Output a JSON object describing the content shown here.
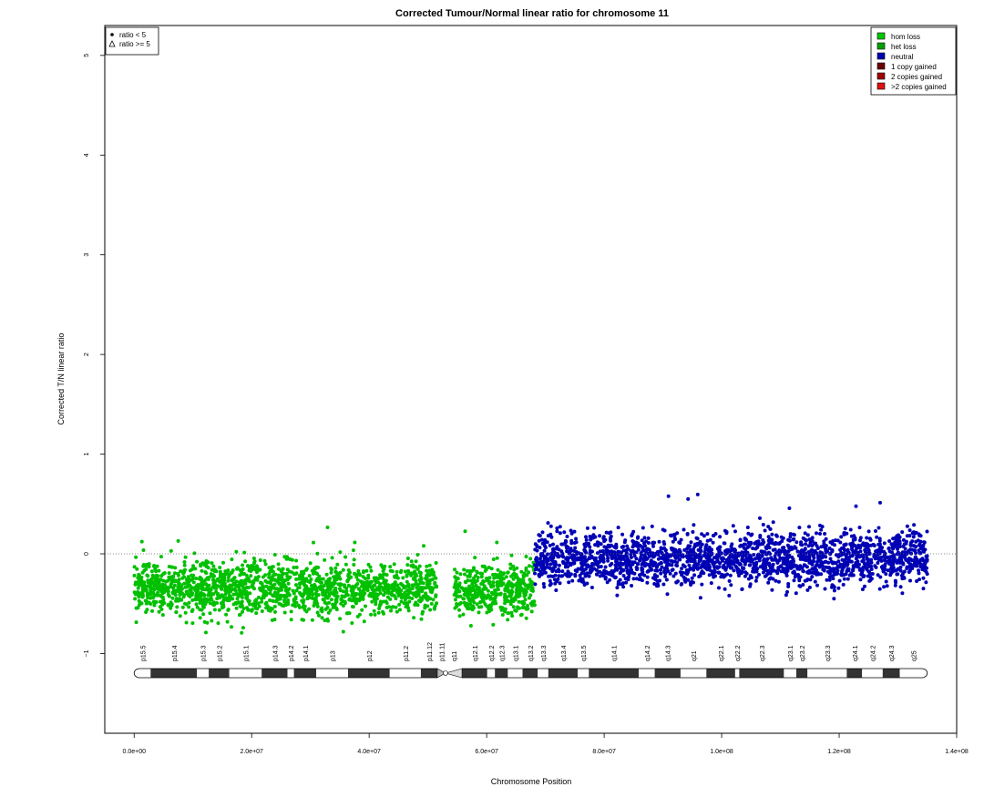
{
  "chart_data": {
    "type": "scatter",
    "title": "Corrected Tumour/Normal linear ratio for chromosome  11",
    "xlabel": "Chromosome Position",
    "ylabel": "Corrected T/N linear ratio",
    "xlim": [
      -5000000,
      140000000
    ],
    "ylim": [
      -1.8,
      5.3
    ],
    "x_ticks": [
      0,
      20000000,
      40000000,
      60000000,
      80000000,
      100000000,
      120000000,
      140000000
    ],
    "x_tick_labels": [
      "0.0e+00",
      "2.0e+07",
      "4.0e+07",
      "6.0e+07",
      "8.0e+07",
      "1.0e+08",
      "1.2e+08",
      "1.4e+08"
    ],
    "y_ticks": [
      -1,
      0,
      1,
      2,
      3,
      4,
      5
    ],
    "y_tick_labels": [
      "−1",
      "0",
      "1",
      "2",
      "3",
      "4",
      "5"
    ],
    "reference_line": 0,
    "shape_legend": {
      "placement": "top-left",
      "entries": [
        {
          "label": "ratio < 5",
          "symbol": "dot"
        },
        {
          "label": "ratio >= 5",
          "symbol": "triangle"
        }
      ]
    },
    "color_legend": {
      "placement": "top-right",
      "entries": [
        {
          "label": "hom loss",
          "color": "#00c800"
        },
        {
          "label": "het loss",
          "color": "#00a000"
        },
        {
          "label": "neutral",
          "color": "#0000b0"
        },
        {
          "label": "1 copy gained",
          "color": "#6e0000"
        },
        {
          "label": "2 copies gained",
          "color": "#a00000"
        },
        {
          "label": ">2 copies gained",
          "color": "#e01010"
        }
      ]
    },
    "series": [
      {
        "name": "het loss",
        "color": "#00c000",
        "x_range": [
          0,
          51500000
        ],
        "mean": -0.35,
        "spread": 0.13
      },
      {
        "name": "het loss",
        "color": "#00c000",
        "x_range": [
          54500000,
          68200000
        ],
        "mean": -0.35,
        "spread": 0.13
      },
      {
        "name": "neutral",
        "color": "#0000b4",
        "x_range": [
          68200000,
          135000000
        ],
        "mean": -0.05,
        "spread": 0.13
      }
    ],
    "ideogram": {
      "centromere": 53000000,
      "bands": [
        {
          "name": "p15.5",
          "start": 0,
          "end": 2800000,
          "stain": "gneg"
        },
        {
          "name": "p15.4",
          "start": 2800000,
          "end": 10700000,
          "stain": "gpos"
        },
        {
          "name": "p15.3",
          "start": 10700000,
          "end": 12700000,
          "stain": "gneg"
        },
        {
          "name": "p15.2",
          "start": 12700000,
          "end": 16200000,
          "stain": "gpos"
        },
        {
          "name": "p15.1",
          "start": 16200000,
          "end": 21700000,
          "stain": "gneg"
        },
        {
          "name": "p14.3",
          "start": 21700000,
          "end": 26100000,
          "stain": "gpos"
        },
        {
          "name": "p14.2",
          "start": 26100000,
          "end": 27200000,
          "stain": "gneg"
        },
        {
          "name": "p14.1",
          "start": 27200000,
          "end": 31000000,
          "stain": "gpos"
        },
        {
          "name": "p13",
          "start": 31000000,
          "end": 36400000,
          "stain": "gneg"
        },
        {
          "name": "p12",
          "start": 36400000,
          "end": 43500000,
          "stain": "gpos"
        },
        {
          "name": "p11.2",
          "start": 43500000,
          "end": 48800000,
          "stain": "gneg"
        },
        {
          "name": "p11.12",
          "start": 48800000,
          "end": 51600000,
          "stain": "gpos"
        },
        {
          "name": "p11.11",
          "start": 51600000,
          "end": 53000000,
          "stain": "acen"
        },
        {
          "name": "q11",
          "start": 53000000,
          "end": 55800000,
          "stain": "acen"
        },
        {
          "name": "q12.1",
          "start": 55800000,
          "end": 60100000,
          "stain": "gpos"
        },
        {
          "name": "q12.2",
          "start": 60100000,
          "end": 61400000,
          "stain": "gneg"
        },
        {
          "name": "q12.3",
          "start": 61400000,
          "end": 63600000,
          "stain": "gpos"
        },
        {
          "name": "q13.1",
          "start": 63600000,
          "end": 66100000,
          "stain": "gneg"
        },
        {
          "name": "q13.2",
          "start": 66100000,
          "end": 68700000,
          "stain": "gpos"
        },
        {
          "name": "q13.3",
          "start": 68700000,
          "end": 70500000,
          "stain": "gneg"
        },
        {
          "name": "q13.4",
          "start": 70500000,
          "end": 75500000,
          "stain": "gpos"
        },
        {
          "name": "q13.5",
          "start": 75500000,
          "end": 77400000,
          "stain": "gneg"
        },
        {
          "name": "q14.1",
          "start": 77400000,
          "end": 85900000,
          "stain": "gpos"
        },
        {
          "name": "q14.2",
          "start": 85900000,
          "end": 88600000,
          "stain": "gneg"
        },
        {
          "name": "q14.3",
          "start": 88600000,
          "end": 93000000,
          "stain": "gpos"
        },
        {
          "name": "q21",
          "start": 93000000,
          "end": 97400000,
          "stain": "gneg"
        },
        {
          "name": "q22.1",
          "start": 97400000,
          "end": 102300000,
          "stain": "gpos"
        },
        {
          "name": "q22.2",
          "start": 102300000,
          "end": 103000000,
          "stain": "gneg"
        },
        {
          "name": "q22.3",
          "start": 103000000,
          "end": 110600000,
          "stain": "gpos"
        },
        {
          "name": "q23.1",
          "start": 110600000,
          "end": 112700000,
          "stain": "gneg"
        },
        {
          "name": "q23.2",
          "start": 112700000,
          "end": 114600000,
          "stain": "gpos"
        },
        {
          "name": "q23.3",
          "start": 114600000,
          "end": 121300000,
          "stain": "gneg"
        },
        {
          "name": "q24.1",
          "start": 121300000,
          "end": 123900000,
          "stain": "gpos"
        },
        {
          "name": "q24.2",
          "start": 123900000,
          "end": 127400000,
          "stain": "gneg"
        },
        {
          "name": "q24.3",
          "start": 127400000,
          "end": 130300000,
          "stain": "gpos"
        },
        {
          "name": "q25",
          "start": 130300000,
          "end": 135000000,
          "stain": "gneg"
        }
      ]
    }
  }
}
